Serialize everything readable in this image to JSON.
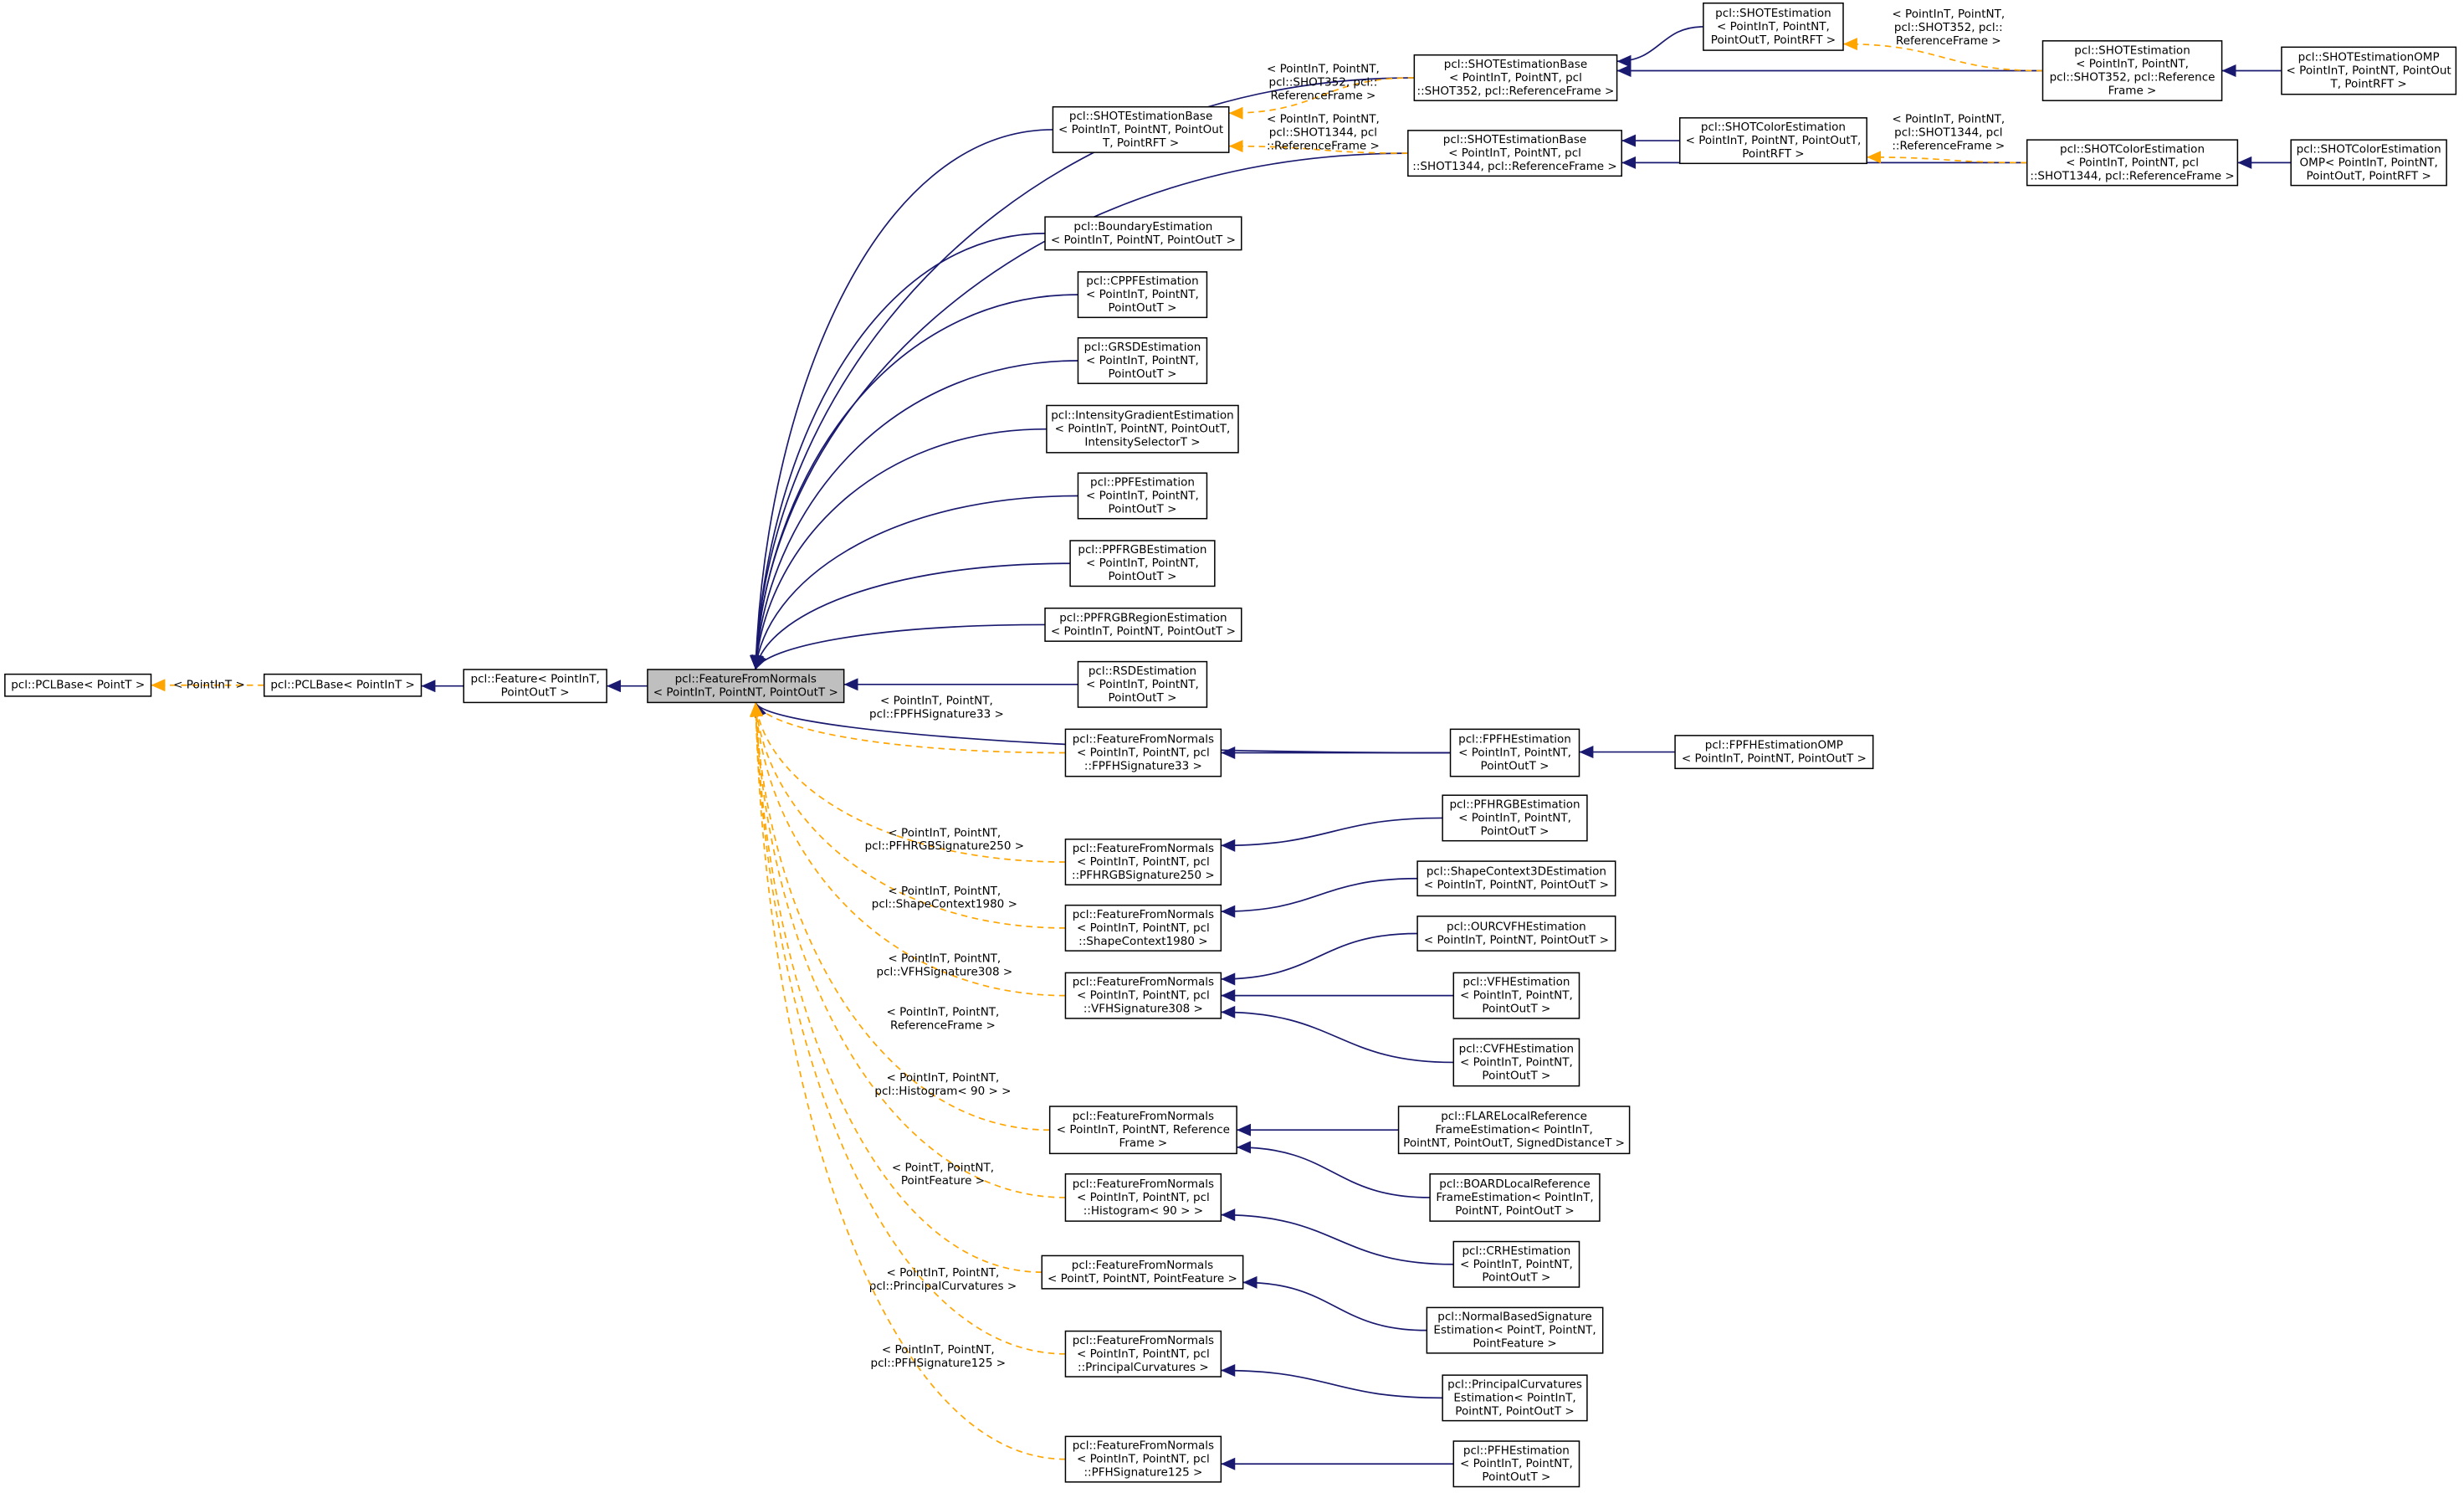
{
  "nodes": [
    {
      "lines": [
        "pcl::PCLBase< PointT >"
      ]
    },
    {
      "lines": [
        "pcl::PCLBase< PointInT >"
      ]
    },
    {
      "lines": [
        "pcl::Feature< PointInT,",
        "PointOutT >"
      ]
    },
    {
      "lines": [
        "pcl::FeatureFromNormals",
        "< PointInT, PointNT, PointOutT >"
      ]
    },
    {
      "lines": [
        "pcl::SHOTEstimationBase",
        "< PointInT, PointNT, PointOut",
        "T, PointRFT >"
      ]
    },
    {
      "lines": [
        "pcl::SHOTEstimationBase",
        "< PointInT, PointNT, pcl",
        "::SHOT352, pcl::ReferenceFrame >"
      ]
    },
    {
      "lines": [
        "pcl::SHOTEstimationBase",
        "< PointInT, PointNT, pcl",
        "::SHOT1344, pcl::ReferenceFrame >"
      ]
    },
    {
      "lines": [
        "pcl::SHOTEstimation",
        "< PointInT, PointNT,",
        "PointOutT, PointRFT >"
      ]
    },
    {
      "lines": [
        "pcl::SHOTColorEstimation",
        "< PointInT, PointNT, PointOutT,",
        "PointRFT >"
      ]
    },
    {
      "lines": [
        "pcl::SHOTEstimation",
        "< PointInT, PointNT,",
        "pcl::SHOT352, pcl::Reference",
        "Frame >"
      ]
    },
    {
      "lines": [
        "pcl::SHOTColorEstimation",
        "< PointInT, PointNT, pcl",
        "::SHOT1344, pcl::ReferenceFrame >"
      ]
    },
    {
      "lines": [
        "pcl::SHOTEstimationOMP",
        "< PointInT, PointNT, PointOut",
        "T, PointRFT >"
      ]
    },
    {
      "lines": [
        "pcl::SHOTColorEstimation",
        "OMP< PointInT, PointNT,",
        "PointOutT, PointRFT >"
      ]
    },
    {
      "lines": [
        "pcl::BoundaryEstimation",
        "< PointInT, PointNT, PointOutT >"
      ]
    },
    {
      "lines": [
        "pcl::CPPFEstimation",
        "< PointInT, PointNT,",
        "PointOutT >"
      ]
    },
    {
      "lines": [
        "pcl::GRSDEstimation",
        "< PointInT, PointNT,",
        "PointOutT >"
      ]
    },
    {
      "lines": [
        "pcl::IntensityGradientEstimation",
        "< PointInT, PointNT, PointOutT,",
        "IntensitySelectorT >"
      ]
    },
    {
      "lines": [
        "pcl::PPFEstimation",
        "< PointInT, PointNT,",
        "PointOutT >"
      ]
    },
    {
      "lines": [
        "pcl::PPFRGBEstimation",
        "< PointInT, PointNT,",
        "PointOutT >"
      ]
    },
    {
      "lines": [
        "pcl::PPFRGBRegionEstimation",
        "< PointInT, PointNT, PointOutT >"
      ]
    },
    {
      "lines": [
        "pcl::RSDEstimation",
        "< PointInT, PointNT,",
        "PointOutT >"
      ]
    },
    {
      "lines": [
        "pcl::FeatureFromNormals",
        "< PointInT, PointNT, pcl",
        "::FPFHSignature33 >"
      ]
    },
    {
      "lines": [
        "pcl::FPFHEstimation",
        "< PointInT, PointNT,",
        "PointOutT >"
      ]
    },
    {
      "lines": [
        "pcl::FPFHEstimationOMP",
        "< PointInT, PointNT, PointOutT >"
      ]
    },
    {
      "lines": [
        "pcl::FeatureFromNormals",
        "< PointInT, PointNT, pcl",
        "::PFHRGBSignature250 >"
      ]
    },
    {
      "lines": [
        "pcl::PFHRGBEstimation",
        "< PointInT, PointNT,",
        "PointOutT >"
      ]
    },
    {
      "lines": [
        "pcl::FeatureFromNormals",
        "< PointInT, PointNT, pcl",
        "::ShapeContext1980 >"
      ]
    },
    {
      "lines": [
        "pcl::ShapeContext3DEstimation",
        "< PointInT, PointNT, PointOutT >"
      ]
    },
    {
      "lines": [
        "pcl::FeatureFromNormals",
        "< PointInT, PointNT, pcl",
        "::VFHSignature308 >"
      ]
    },
    {
      "lines": [
        "pcl::OURCVFHEstimation",
        "< PointInT, PointNT, PointOutT >"
      ]
    },
    {
      "lines": [
        "pcl::VFHEstimation",
        "< PointInT, PointNT,",
        "PointOutT >"
      ]
    },
    {
      "lines": [
        "pcl::CVFHEstimation",
        "< PointInT, PointNT,",
        "PointOutT >"
      ]
    },
    {
      "lines": [
        "pcl::FeatureFromNormals",
        "< PointInT, PointNT, Reference",
        "Frame >"
      ]
    },
    {
      "lines": [
        "pcl::FLARELocalReference",
        "FrameEstimation< PointInT,",
        "PointNT, PointOutT, SignedDistanceT >"
      ]
    },
    {
      "lines": [
        "pcl::FeatureFromNormals",
        "< PointInT, PointNT, pcl",
        "::Histogram< 90 > >"
      ]
    },
    {
      "lines": [
        "pcl::BOARDLocalReference",
        "FrameEstimation< PointInT,",
        "PointNT, PointOutT >"
      ]
    },
    {
      "lines": [
        "pcl::FeatureFromNormals",
        "< PointT, PointNT, PointFeature >"
      ]
    },
    {
      "lines": [
        "pcl::CRHEstimation",
        "< PointInT, PointNT,",
        "PointOutT >"
      ]
    },
    {
      "lines": [
        "pcl::FeatureFromNormals",
        "< PointInT, PointNT, pcl",
        "::PrincipalCurvatures >"
      ]
    },
    {
      "lines": [
        "pcl::NormalBasedSignature",
        "Estimation< PointT, PointNT,",
        "PointFeature >"
      ]
    },
    {
      "lines": [
        "pcl::PrincipalCurvatures",
        "Estimation< PointInT,",
        "PointNT, PointOutT >"
      ]
    },
    {
      "lines": [
        "pcl::FeatureFromNormals",
        "< PointInT, PointNT, pcl",
        "::PFHSignature125 >"
      ]
    },
    {
      "lines": [
        "pcl::PFHEstimation",
        "< PointInT, PointNT,",
        "PointOutT >"
      ]
    }
  ],
  "edge_labels": [
    {
      "lines": [
        "< PointInT >"
      ]
    },
    {
      "lines": [
        "< PointInT, PointNT,",
        "pcl::SHOT352, pcl::",
        "ReferenceFrame >"
      ]
    },
    {
      "lines": [
        "< PointInT, PointNT,",
        "pcl::SHOT1344, pcl",
        "::ReferenceFrame >"
      ]
    },
    {
      "lines": [
        "< PointInT, PointNT,",
        "pcl::SHOT352, pcl::",
        "ReferenceFrame >"
      ]
    },
    {
      "lines": [
        "< PointInT, PointNT,",
        "pcl::SHOT1344, pcl",
        "::ReferenceFrame >"
      ]
    },
    {
      "lines": [
        "< PointInT, PointNT,",
        "pcl::FPFHSignature33 >"
      ]
    },
    {
      "lines": [
        "< PointInT, PointNT,",
        "pcl::PFHRGBSignature250 >"
      ]
    },
    {
      "lines": [
        "< PointInT, PointNT,",
        "pcl::ShapeContext1980 >"
      ]
    },
    {
      "lines": [
        "< PointInT, PointNT,",
        "pcl::VFHSignature308 >"
      ]
    },
    {
      "lines": [
        "< PointInT, PointNT,",
        "ReferenceFrame >"
      ]
    },
    {
      "lines": [
        "< PointInT, PointNT,",
        "pcl::Histogram< 90 > >"
      ]
    },
    {
      "lines": [
        "< PointT, PointNT,",
        "PointFeature >"
      ]
    },
    {
      "lines": [
        "< PointInT, PointNT,",
        "pcl::PrincipalCurvatures >"
      ]
    },
    {
      "lines": [
        "< PointInT, PointNT,",
        "pcl::PFHSignature125 >"
      ]
    }
  ]
}
